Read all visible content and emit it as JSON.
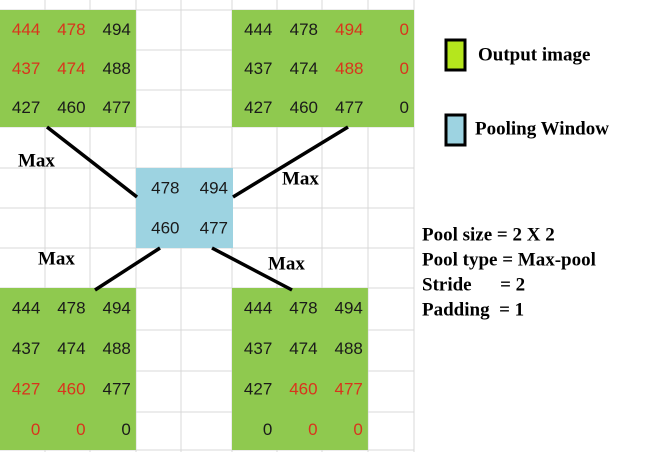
{
  "grids": [
    {
      "fill": "#8fc94f",
      "cells": [
        [
          {
            "text": "444",
            "color": "#d9341c"
          },
          {
            "text": "478",
            "color": "#d9341c"
          },
          {
            "text": "494",
            "color": "#1a1a1a"
          }
        ],
        [
          {
            "text": "437",
            "color": "#d9341c"
          },
          {
            "text": "474",
            "color": "#d9341c"
          },
          {
            "text": "488",
            "color": "#1a1a1a"
          }
        ],
        [
          {
            "text": "427",
            "color": "#1a1a1a"
          },
          {
            "text": "460",
            "color": "#1a1a1a"
          },
          {
            "text": "477",
            "color": "#1a1a1a"
          }
        ]
      ]
    },
    {
      "fill": "#8fc94f",
      "cells": [
        [
          {
            "text": "444",
            "color": "#1a1a1a"
          },
          {
            "text": "478",
            "color": "#1a1a1a"
          },
          {
            "text": "494",
            "color": "#d9341c"
          },
          {
            "text": "0",
            "color": "#d9341c"
          }
        ],
        [
          {
            "text": "437",
            "color": "#1a1a1a"
          },
          {
            "text": "474",
            "color": "#1a1a1a"
          },
          {
            "text": "488",
            "color": "#d9341c"
          },
          {
            "text": "0",
            "color": "#d9341c"
          }
        ],
        [
          {
            "text": "427",
            "color": "#1a1a1a"
          },
          {
            "text": "460",
            "color": "#1a1a1a"
          },
          {
            "text": "477",
            "color": "#1a1a1a"
          },
          {
            "text": "0",
            "color": "#1a1a1a"
          }
        ]
      ]
    },
    {
      "fill": "#9dd3e1",
      "cells": [
        [
          {
            "text": "478",
            "color": "#1a1a1a"
          },
          {
            "text": "494",
            "color": "#1a1a1a"
          }
        ],
        [
          {
            "text": "460",
            "color": "#1a1a1a"
          },
          {
            "text": "477",
            "color": "#1a1a1a"
          }
        ]
      ]
    },
    {
      "fill": "#8fc94f",
      "cells": [
        [
          {
            "text": "444",
            "color": "#1a1a1a"
          },
          {
            "text": "478",
            "color": "#1a1a1a"
          },
          {
            "text": "494",
            "color": "#1a1a1a"
          }
        ],
        [
          {
            "text": "437",
            "color": "#1a1a1a"
          },
          {
            "text": "474",
            "color": "#1a1a1a"
          },
          {
            "text": "488",
            "color": "#1a1a1a"
          }
        ],
        [
          {
            "text": "427",
            "color": "#d9341c"
          },
          {
            "text": "460",
            "color": "#d9341c"
          },
          {
            "text": "477",
            "color": "#1a1a1a"
          }
        ],
        [
          {
            "text": "0",
            "color": "#d9341c"
          },
          {
            "text": "0",
            "color": "#d9341c"
          },
          {
            "text": "0",
            "color": "#1a1a1a"
          }
        ]
      ]
    },
    {
      "fill": "#8fc94f",
      "cells": [
        [
          {
            "text": "444",
            "color": "#1a1a1a"
          },
          {
            "text": "478",
            "color": "#1a1a1a"
          },
          {
            "text": "494",
            "color": "#1a1a1a"
          }
        ],
        [
          {
            "text": "437",
            "color": "#1a1a1a"
          },
          {
            "text": "474",
            "color": "#1a1a1a"
          },
          {
            "text": "488",
            "color": "#1a1a1a"
          }
        ],
        [
          {
            "text": "427",
            "color": "#1a1a1a"
          },
          {
            "text": "460",
            "color": "#d9341c"
          },
          {
            "text": "477",
            "color": "#d9341c"
          }
        ],
        [
          {
            "text": "0",
            "color": "#1a1a1a"
          },
          {
            "text": "0",
            "color": "#d9341c"
          },
          {
            "text": "0",
            "color": "#d9341c"
          }
        ]
      ]
    }
  ],
  "max_labels": [
    "Max",
    "Max",
    "Max",
    "Max"
  ],
  "legend": [
    {
      "label": "Output image",
      "color": "#b5e61d"
    },
    {
      "label": "Pooling Window",
      "color": "#9dd3e1"
    }
  ],
  "info": [
    "Pool size = 2 X 2",
    "Pool type = Max-pool",
    "Stride      = 2",
    "Padding  = 1"
  ]
}
